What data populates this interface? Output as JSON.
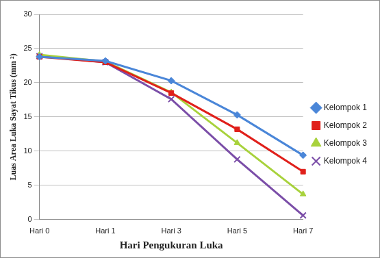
{
  "chart_data": {
    "type": "line",
    "y_label": "Luas Area Luka Sayat Tikus (mm ²)",
    "x_label": "Hari Pengukuran Luka",
    "categories": [
      "Hari 0",
      "Hari 1",
      "Hari 3",
      "Hari 5",
      "Hari 7"
    ],
    "series": [
      {
        "name": "Kelompok 1",
        "color": "#4a86d8",
        "marker": "diamond",
        "values": [
          23.8,
          23.2,
          20.3,
          15.3,
          9.4
        ]
      },
      {
        "name": "Kelompok 2",
        "color": "#e0201b",
        "marker": "square",
        "values": [
          23.8,
          23.0,
          18.5,
          13.2,
          7.0
        ]
      },
      {
        "name": "Kelompok 3",
        "color": "#a8d23c",
        "marker": "triangle",
        "values": [
          24.1,
          23.1,
          18.6,
          11.2,
          3.7
        ]
      },
      {
        "name": "Kelompok 4",
        "color": "#7b4ea8",
        "marker": "x",
        "values": [
          23.9,
          23.0,
          17.6,
          8.8,
          0.6
        ]
      }
    ],
    "ylim": [
      0,
      30
    ],
    "yticks": [
      0,
      5,
      10,
      15,
      20,
      25,
      30
    ],
    "grid": true,
    "legend": "right"
  }
}
